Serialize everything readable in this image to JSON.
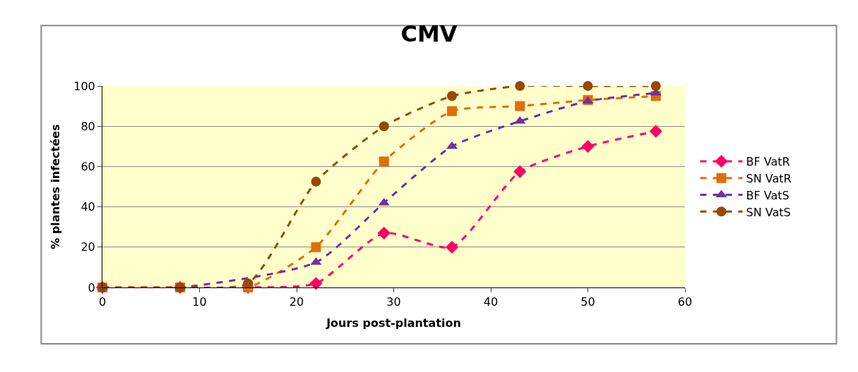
{
  "chart_data": {
    "type": "line",
    "title": "CMV",
    "xlabel": "Jours post-plantation",
    "ylabel": "% plantes infectées",
    "x": [
      0,
      8,
      15,
      22,
      29,
      36,
      43,
      50,
      57
    ],
    "series": [
      {
        "name": "BF VatR",
        "color": "#ff0066",
        "marker": "diamond",
        "values": [
          0,
          0,
          0,
          2,
          27,
          20,
          57.5,
          70,
          77.5
        ]
      },
      {
        "name": "SN VatR",
        "color": "#e36c09",
        "marker": "square",
        "values": [
          0,
          0,
          0,
          20,
          62.5,
          87.5,
          90,
          93,
          95
        ]
      },
      {
        "name": "BF VatS",
        "color": "#7030a0",
        "marker": "triangle",
        "values": [
          0,
          0,
          null,
          12.5,
          42,
          70,
          82.5,
          92.5,
          96.5
        ]
      },
      {
        "name": "SN VatS",
        "color": "#984807",
        "marker": "circle",
        "values": [
          0,
          0,
          2,
          52.5,
          80,
          95,
          100,
          100,
          100
        ]
      }
    ],
    "xlim": [
      0,
      60
    ],
    "xticks": [
      0,
      10,
      20,
      30,
      40,
      50,
      60
    ],
    "ylim": [
      0,
      100
    ],
    "yticks": [
      0,
      20,
      40,
      60,
      80,
      100
    ],
    "grid": "y",
    "legend": "right",
    "line_style": "dashed"
  }
}
